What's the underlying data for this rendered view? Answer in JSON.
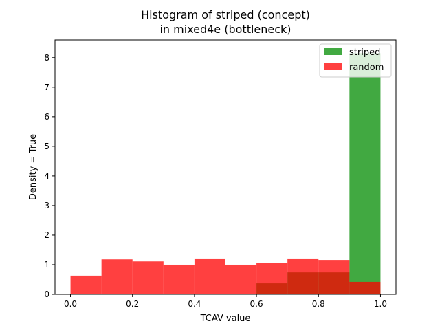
{
  "chart_data": {
    "type": "bar",
    "title_line1": "Histogram of striped (concept)",
    "title_line2": "in mixed4e (bottleneck)",
    "xlabel": "TCAV value",
    "ylabel": "Density = True",
    "xlim": [
      -0.05,
      1.05
    ],
    "ylim": [
      0,
      8.6
    ],
    "xticks": [
      0.0,
      0.2,
      0.4,
      0.6,
      0.8,
      1.0
    ],
    "xtick_labels": [
      "0.0",
      "0.2",
      "0.4",
      "0.6",
      "0.8",
      "1.0"
    ],
    "yticks": [
      0,
      1,
      2,
      3,
      4,
      5,
      6,
      7,
      8
    ],
    "ytick_labels": [
      "0",
      "1",
      "2",
      "3",
      "4",
      "5",
      "6",
      "7",
      "8"
    ],
    "legend_position": "top-right",
    "series": [
      {
        "name": "striped",
        "color": "#2ca02c",
        "alpha": 0.9,
        "bins": [
          {
            "x0": 0.6,
            "x1": 0.7,
            "y": 0.37
          },
          {
            "x0": 0.7,
            "x1": 0.8,
            "y": 0.74
          },
          {
            "x0": 0.8,
            "x1": 0.9,
            "y": 0.74
          },
          {
            "x0": 0.9,
            "x1": 1.0,
            "y": 8.15
          }
        ]
      },
      {
        "name": "random",
        "color": "#ff0000",
        "alpha": 0.75,
        "bins": [
          {
            "x0": 0.0,
            "x1": 0.1,
            "y": 0.63
          },
          {
            "x0": 0.1,
            "x1": 0.2,
            "y": 1.18
          },
          {
            "x0": 0.2,
            "x1": 0.3,
            "y": 1.11
          },
          {
            "x0": 0.3,
            "x1": 0.4,
            "y": 1.0
          },
          {
            "x0": 0.4,
            "x1": 0.5,
            "y": 1.21
          },
          {
            "x0": 0.5,
            "x1": 0.6,
            "y": 1.0
          },
          {
            "x0": 0.6,
            "x1": 0.7,
            "y": 1.05
          },
          {
            "x0": 0.7,
            "x1": 0.8,
            "y": 1.21
          },
          {
            "x0": 0.8,
            "x1": 0.9,
            "y": 1.16
          },
          {
            "x0": 0.9,
            "x1": 1.0,
            "y": 0.42
          }
        ]
      }
    ]
  }
}
